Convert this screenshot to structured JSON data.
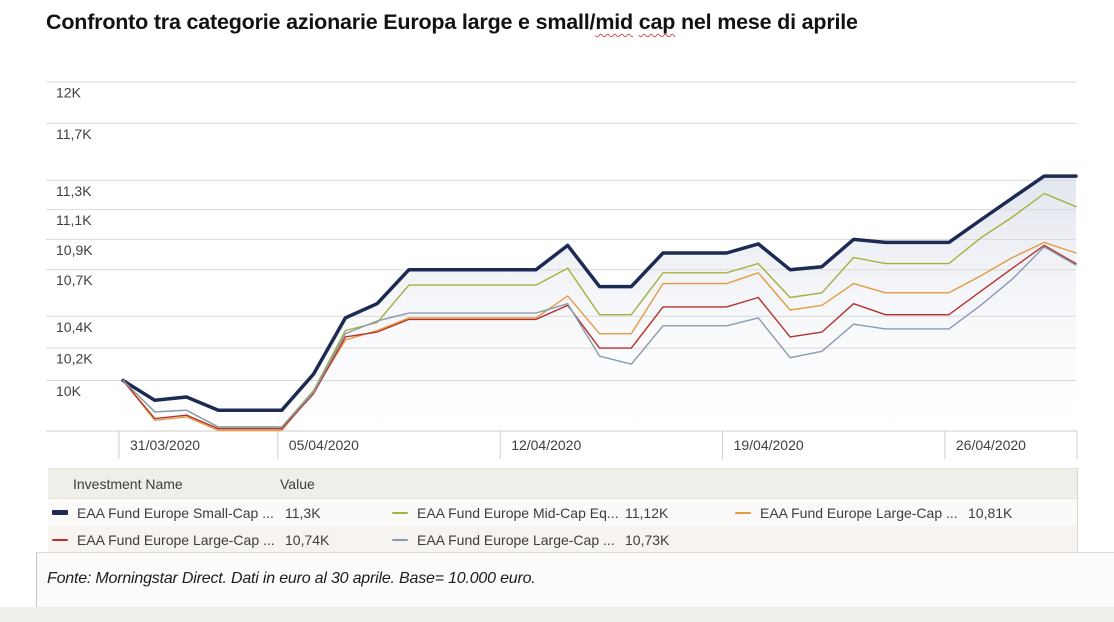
{
  "title": {
    "part1": "Confronto tra categorie azionarie Europa large e small/",
    "misspelled1": "mid",
    "misspelled2": "cap",
    "part2": " nel mese di aprile"
  },
  "chart_data": {
    "type": "line",
    "y_scale": "log",
    "ylim": [
      9.6,
      12
    ],
    "grid": true,
    "legend_position": "bottom",
    "area_fill_under_first_series": true,
    "base_value": 10,
    "x": [
      "31/03/2020",
      "01/04/2020",
      "02/04/2020",
      "03/04/2020",
      "04/04/2020",
      "05/04/2020",
      "06/04/2020",
      "07/04/2020",
      "08/04/2020",
      "09/04/2020",
      "10/04/2020",
      "11/04/2020",
      "12/04/2020",
      "13/04/2020",
      "14/04/2020",
      "15/04/2020",
      "16/04/2020",
      "17/04/2020",
      "18/04/2020",
      "19/04/2020",
      "20/04/2020",
      "21/04/2020",
      "22/04/2020",
      "23/04/2020",
      "24/04/2020",
      "25/04/2020",
      "26/04/2020",
      "27/04/2020",
      "28/04/2020",
      "29/04/2020",
      "30/04/2020"
    ],
    "y_ticks": [
      {
        "label": "12K",
        "value": 12
      },
      {
        "label": "11,7K",
        "value": 11.7
      },
      {
        "label": "11,3K",
        "value": 11.3
      },
      {
        "label": "11,1K",
        "value": 11.1
      },
      {
        "label": "10,9K",
        "value": 10.9
      },
      {
        "label": "10,7K",
        "value": 10.7
      },
      {
        "label": "10,4K",
        "value": 10.4
      },
      {
        "label": "10,2K",
        "value": 10.2
      },
      {
        "label": "10K",
        "value": 10
      }
    ],
    "x_bands": [
      {
        "label": "31/03/2020",
        "start_index": 0
      },
      {
        "label": "05/04/2020",
        "start_index": 5
      },
      {
        "label": "12/04/2020",
        "start_index": 12
      },
      {
        "label": "19/04/2020",
        "start_index": 19
      },
      {
        "label": "26/04/2020",
        "start_index": 26
      }
    ],
    "series": [
      {
        "name": "EAA Fund Europe Small-Cap ...",
        "legend_value": "11,3K",
        "color": "#1c2b54",
        "line_width": 3.5,
        "values": [
          10.0,
          9.88,
          9.9,
          9.82,
          9.82,
          9.82,
          10.04,
          10.39,
          10.48,
          10.7,
          10.7,
          10.7,
          10.7,
          10.7,
          10.86,
          10.59,
          10.59,
          10.81,
          10.81,
          10.81,
          10.87,
          10.7,
          10.72,
          10.9,
          10.88,
          10.88,
          10.88,
          11.03,
          11.18,
          11.33,
          11.33
        ]
      },
      {
        "name": "EAA Fund Europe Mid-Cap Eq...",
        "legend_value": "11,12K",
        "color": "#a5b13f",
        "line_width": 1.4,
        "values": [
          10.0,
          9.81,
          9.82,
          9.72,
          9.72,
          9.72,
          9.94,
          10.31,
          10.36,
          10.6,
          10.6,
          10.6,
          10.6,
          10.6,
          10.71,
          10.41,
          10.41,
          10.68,
          10.68,
          10.68,
          10.74,
          10.52,
          10.55,
          10.78,
          10.74,
          10.74,
          10.74,
          10.91,
          11.05,
          11.21,
          11.12
        ]
      },
      {
        "name": "EAA Fund Europe Large-Cap ...",
        "legend_value": "10,81K",
        "color": "#e39c44",
        "line_width": 1.4,
        "values": [
          10.0,
          9.76,
          9.78,
          9.7,
          9.7,
          9.7,
          9.93,
          10.25,
          10.31,
          10.39,
          10.39,
          10.39,
          10.39,
          10.39,
          10.53,
          10.29,
          10.29,
          10.61,
          10.61,
          10.61,
          10.68,
          10.44,
          10.47,
          10.61,
          10.55,
          10.55,
          10.55,
          10.66,
          10.78,
          10.88,
          10.81
        ]
      },
      {
        "name": "EAA Fund Europe Large-Cap ...",
        "legend_value": "10,74K",
        "color": "#b5332c",
        "line_width": 1.4,
        "values": [
          10.0,
          9.77,
          9.79,
          9.71,
          9.71,
          9.71,
          9.92,
          10.27,
          10.3,
          10.38,
          10.38,
          10.38,
          10.38,
          10.38,
          10.47,
          10.2,
          10.2,
          10.46,
          10.46,
          10.46,
          10.52,
          10.27,
          10.3,
          10.48,
          10.41,
          10.41,
          10.41,
          10.56,
          10.71,
          10.86,
          10.74
        ]
      },
      {
        "name": "EAA Fund Europe Large-Cap ...",
        "legend_value": "10,73K",
        "color": "#8b9ab1",
        "line_width": 1.4,
        "values": [
          10.0,
          9.81,
          9.82,
          9.72,
          9.72,
          9.72,
          9.93,
          10.29,
          10.37,
          10.42,
          10.42,
          10.42,
          10.42,
          10.42,
          10.48,
          10.15,
          10.1,
          10.34,
          10.34,
          10.34,
          10.39,
          10.14,
          10.18,
          10.35,
          10.32,
          10.32,
          10.32,
          10.47,
          10.64,
          10.85,
          10.73
        ]
      }
    ]
  },
  "legend": {
    "headers": [
      "Investment Name",
      "Value"
    ]
  },
  "footer": {
    "source_note": "Fonte: Morningstar Direct. Dati in euro al 30 aprile. Base= 10.000 euro."
  },
  "colors": {
    "gridline": "#d9d9d9",
    "axis_band_border": "#cfccc8",
    "area_fill_top": "#c3cbdc",
    "squiggle_red": "#c9564a"
  }
}
